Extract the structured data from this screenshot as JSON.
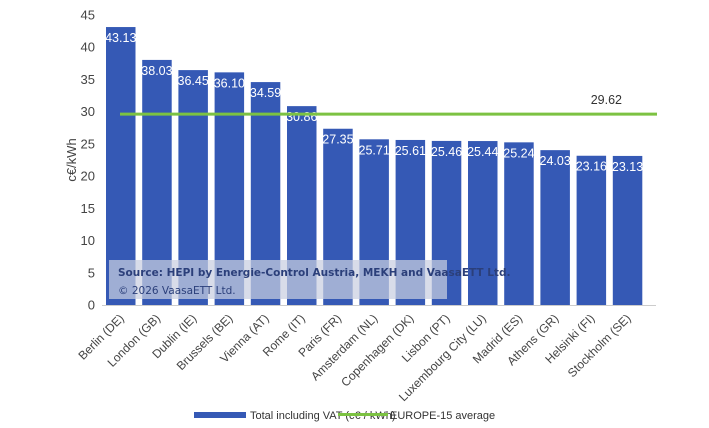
{
  "chart_data": {
    "type": "bar",
    "title": "",
    "xlabel": "",
    "ylabel": "c€/kWh",
    "ylim": [
      0,
      45
    ],
    "yticks": [
      0,
      5,
      10,
      15,
      20,
      25,
      30,
      35,
      40,
      45
    ],
    "grid": false,
    "categories": [
      "Berlin (DE)",
      "London (GB)",
      "Dublin (IE)",
      "Brussels (BE)",
      "Vienna (AT)",
      "Rome (IT)",
      "Paris (FR)",
      "Amsterdam (NL)",
      "Copenhagen (DK)",
      "Lisbon (PT)",
      "Luxembourg City (LU)",
      "Madrid (ES)",
      "Athens (GR)",
      "Helsinki (FI)",
      "Stockholm (SE)"
    ],
    "series": [
      {
        "name": "Total including VAT (c€ / kWh)",
        "type": "bar",
        "color": "#3559b5",
        "values": [
          43.13,
          38.03,
          36.45,
          36.1,
          34.59,
          30.86,
          27.35,
          25.71,
          25.61,
          25.46,
          25.44,
          25.24,
          24.03,
          23.16,
          23.13
        ],
        "labels": [
          "43.13",
          "38.03",
          "36.45",
          "36.10",
          "34.59",
          "30.86",
          "27.35",
          "25.71",
          "25.61",
          "25.46",
          "25.44",
          "25.24",
          "24.03",
          "23.16",
          "23.13"
        ]
      },
      {
        "name": "EUROPE-15 average",
        "type": "line",
        "color": "#7cc242",
        "value": 29.62,
        "label": "29.62"
      }
    ],
    "legend_position": "bottom",
    "annotation": {
      "source": "Source: HEPI by Energie-Control Austria, MEKH and VaasaETT Ltd.",
      "copyright": "© 2026 VaasaETT Ltd."
    }
  }
}
